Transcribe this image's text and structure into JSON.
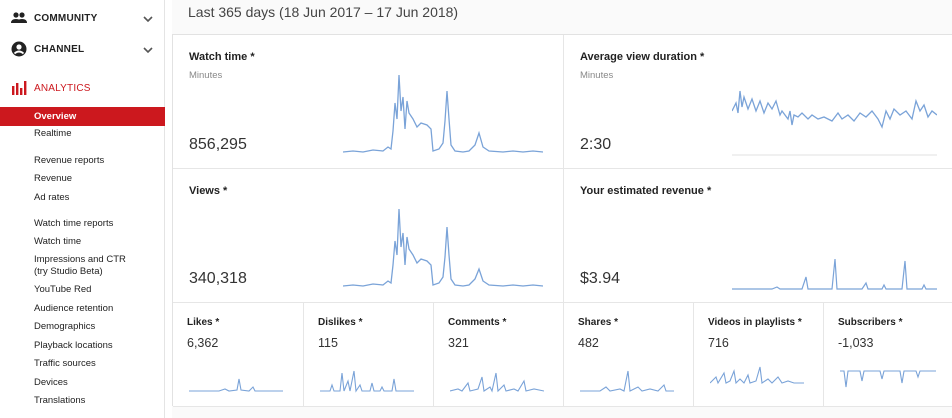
{
  "sidebar": {
    "sections": [
      {
        "label": "COMMUNITY",
        "icon": "community-icon",
        "expanded": false
      },
      {
        "label": "CHANNEL",
        "icon": "channel-icon",
        "expanded": false
      },
      {
        "label": "ANALYTICS",
        "icon": "analytics-icon",
        "expanded": true
      }
    ],
    "items": [
      {
        "label": "Overview",
        "selected": true
      },
      {
        "label": "Realtime"
      },
      {
        "label": "Revenue reports"
      },
      {
        "label": "Revenue"
      },
      {
        "label": "Ad rates"
      },
      {
        "label": "Watch time reports"
      },
      {
        "label": "Watch time"
      },
      {
        "label": "Impressions and CTR (try Studio Beta)"
      },
      {
        "label": "YouTube Red"
      },
      {
        "label": "Audience retention"
      },
      {
        "label": "Demographics"
      },
      {
        "label": "Playback locations"
      },
      {
        "label": "Traffic sources"
      },
      {
        "label": "Devices"
      },
      {
        "label": "Translations"
      }
    ]
  },
  "main": {
    "date_range": "Last 365 days (18 Jun 2017 – 17 Jun 2018)",
    "cards": {
      "watch_time": {
        "title": "Watch time *",
        "unit": "Minutes",
        "value": "856,295"
      },
      "avg_view_duration": {
        "title": "Average view duration *",
        "unit": "Minutes",
        "value": "2:30"
      },
      "views": {
        "title": "Views *",
        "value": "340,318"
      },
      "revenue": {
        "title": "Your estimated revenue *",
        "value": "$3.94"
      }
    },
    "mini_cards": {
      "likes": {
        "title": "Likes *",
        "value": "6,362"
      },
      "dislikes": {
        "title": "Dislikes *",
        "value": "115"
      },
      "comments": {
        "title": "Comments *",
        "value": "321"
      },
      "shares": {
        "title": "Shares *",
        "value": "482"
      },
      "playlists": {
        "title": "Videos in playlists *",
        "value": "716"
      },
      "subscribers": {
        "title": "Subscribers *",
        "value": "-1,033"
      }
    }
  },
  "colors": {
    "accent_red": "#cc181e",
    "spark_blue": "#7aa3d8"
  }
}
